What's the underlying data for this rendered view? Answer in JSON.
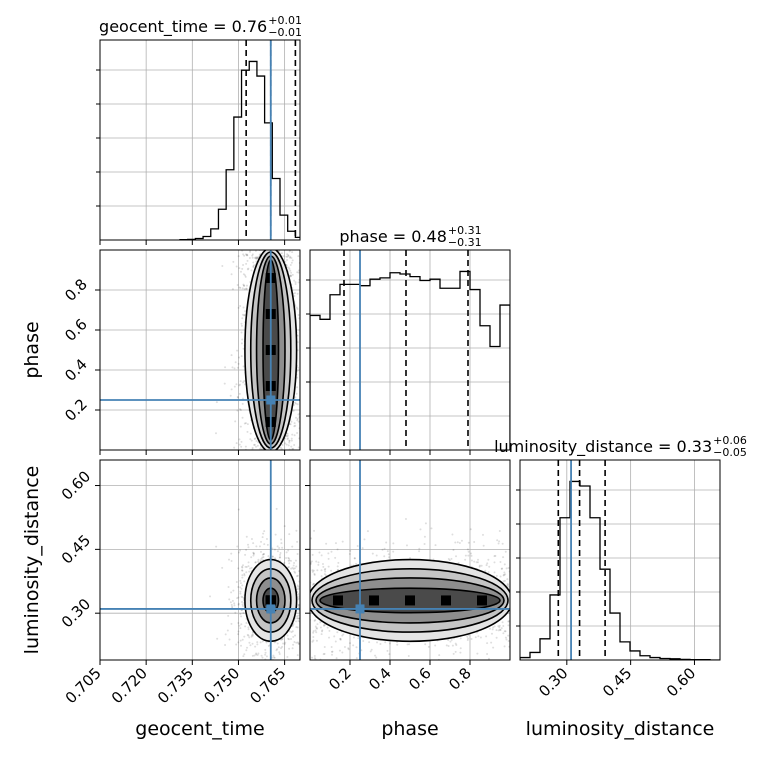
{
  "chart_data": {
    "type": "corner",
    "parameters": [
      "geocent_time",
      "phase",
      "luminosity_distance"
    ],
    "truth": {
      "geocent_time": 0.7605,
      "phase": 0.25,
      "luminosity_distance": 0.31
    },
    "ranges": {
      "geocent_time": [
        0.705,
        0.77
      ],
      "phase": [
        0.0,
        1.0
      ],
      "luminosity_distance": [
        0.19,
        0.66
      ]
    },
    "ticks": {
      "geocent_time": {
        "values": [
          0.705,
          0.72,
          0.735,
          0.75,
          0.765
        ],
        "labels": [
          "0.705",
          "0.720",
          "0.735",
          "0.750",
          "0.765"
        ]
      },
      "phase": {
        "values": [
          0.2,
          0.4,
          0.6,
          0.8
        ],
        "labels": [
          "0.2",
          "0.4",
          "0.6",
          "0.8"
        ]
      },
      "luminosity_distance": {
        "values": [
          0.3,
          0.45,
          0.6
        ],
        "labels": [
          "0.30",
          "0.45",
          "0.60"
        ]
      }
    },
    "titles": [
      {
        "param": "geocent_time",
        "text": "geocent_time = 0.76",
        "plus": "+0.01",
        "minus": "−0.01"
      },
      {
        "param": "phase",
        "text": "phase = 0.48",
        "plus": "+0.31",
        "minus": "−0.31"
      },
      {
        "param": "luminosity_distance",
        "text": "luminosity_distance = 0.33",
        "plus": "+0.06",
        "minus": "−0.05"
      }
    ],
    "quantiles": {
      "geocent_time": [
        0.7525,
        0.7605,
        0.7685
      ],
      "phase": [
        0.17,
        0.48,
        0.79
      ],
      "luminosity_distance": [
        0.28,
        0.33,
        0.39
      ]
    },
    "histograms": {
      "geocent_time": {
        "edges": [
          0.731,
          0.7335,
          0.736,
          0.7385,
          0.741,
          0.7435,
          0.746,
          0.7485,
          0.751,
          0.7535,
          0.756,
          0.7585,
          0.761,
          0.7635,
          0.766,
          0.7685,
          0.771,
          0.7735,
          0.776
        ],
        "counts": [
          1,
          2,
          5,
          12,
          38,
          105,
          240,
          420,
          580,
          610,
          560,
          400,
          210,
          85,
          30,
          9,
          3,
          1
        ]
      },
      "phase": {
        "edges": [
          0.0,
          0.05,
          0.1,
          0.15,
          0.2,
          0.25,
          0.3,
          0.35,
          0.4,
          0.45,
          0.5,
          0.55,
          0.6,
          0.65,
          0.7,
          0.75,
          0.8,
          0.85,
          0.9,
          0.95,
          1.0
        ],
        "counts": [
          520,
          505,
          600,
          640,
          640,
          635,
          660,
          665,
          685,
          680,
          670,
          655,
          660,
          625,
          625,
          690,
          620,
          480,
          400,
          560
        ]
      },
      "luminosity_distance": {
        "edges": [
          0.19,
          0.2135,
          0.237,
          0.2605,
          0.284,
          0.3075,
          0.331,
          0.3545,
          0.378,
          0.4015,
          0.425,
          0.4485,
          0.472,
          0.4955,
          0.519,
          0.5425,
          0.566,
          0.5895,
          0.613,
          0.6365,
          0.66
        ],
        "counts": [
          8,
          25,
          70,
          215,
          470,
          590,
          575,
          470,
          300,
          155,
          60,
          30,
          14,
          8,
          5,
          4,
          2,
          1,
          1,
          0
        ]
      }
    },
    "pairs": [
      {
        "x": "geocent_time",
        "y": "phase",
        "cx": 0.7605,
        "cy": 0.5,
        "sx": 0.0042,
        "sy": 0.29,
        "uniform_y": true
      },
      {
        "x": "geocent_time",
        "y": "luminosity_distance",
        "cx": 0.7605,
        "cy": 0.33,
        "sx": 0.0042,
        "sy": 0.048,
        "uniform_y": false
      },
      {
        "x": "phase",
        "y": "luminosity_distance",
        "cx": 0.5,
        "cy": 0.33,
        "sx": 0.29,
        "sy": 0.048,
        "uniform_x": true
      }
    ],
    "colors": {
      "truth": "#4682b4",
      "hist": "#000000",
      "grid": "#b0b0b0"
    }
  }
}
